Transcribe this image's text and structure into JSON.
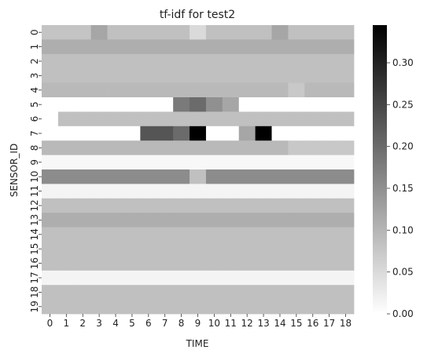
{
  "chart_data": {
    "type": "heatmap",
    "title": "tf-idf for test2",
    "xlabel": "TIME",
    "ylabel": "SENSOR_ID",
    "x_categories": [
      "0",
      "1",
      "2",
      "3",
      "4",
      "5",
      "6",
      "7",
      "8",
      "9",
      "10",
      "11",
      "12",
      "13",
      "14",
      "15",
      "16",
      "17",
      "18"
    ],
    "y_categories": [
      "0",
      "1",
      "2",
      "3",
      "4",
      "5",
      "6",
      "7",
      "8",
      "9",
      "10",
      "11",
      "12",
      "13",
      "14",
      "15",
      "16",
      "17",
      "18",
      "19"
    ],
    "colorbar": {
      "min": 0.0,
      "max": 0.345,
      "ticks": [
        "0.00",
        "0.05",
        "0.10",
        "0.15",
        "0.20",
        "0.25",
        "0.30"
      ],
      "tick_values": [
        0,
        0.05,
        0.1,
        0.15,
        0.2,
        0.25,
        0.3
      ]
    },
    "colormap": {
      "low": "#ffffff",
      "high": "#000000"
    },
    "values": [
      [
        0.08,
        0.08,
        0.08,
        0.12,
        0.085,
        0.085,
        0.085,
        0.085,
        0.085,
        0.05,
        0.085,
        0.085,
        0.085,
        0.085,
        0.12,
        0.085,
        0.085,
        0.085,
        0.085
      ],
      [
        0.11,
        0.11,
        0.11,
        0.11,
        0.11,
        0.11,
        0.11,
        0.11,
        0.11,
        0.11,
        0.11,
        0.11,
        0.11,
        0.11,
        0.11,
        0.11,
        0.11,
        0.11,
        0.11
      ],
      [
        0.085,
        0.085,
        0.085,
        0.085,
        0.085,
        0.085,
        0.085,
        0.085,
        0.085,
        0.085,
        0.085,
        0.085,
        0.085,
        0.085,
        0.085,
        0.085,
        0.085,
        0.085,
        0.085
      ],
      [
        0.085,
        0.085,
        0.085,
        0.085,
        0.085,
        0.085,
        0.085,
        0.085,
        0.085,
        0.085,
        0.085,
        0.085,
        0.085,
        0.085,
        0.085,
        0.085,
        0.085,
        0.085,
        0.085
      ],
      [
        0.095,
        0.095,
        0.095,
        0.095,
        0.095,
        0.095,
        0.095,
        0.095,
        0.095,
        0.095,
        0.095,
        0.095,
        0.095,
        0.095,
        0.095,
        0.075,
        0.095,
        0.095,
        0.095
      ],
      [
        0,
        0,
        0,
        0,
        0,
        0,
        0,
        0,
        0.18,
        0.2,
        0.15,
        0.12,
        0,
        0,
        0,
        0,
        0,
        0,
        0
      ],
      [
        0,
        0.085,
        0.085,
        0.085,
        0.085,
        0.085,
        0.085,
        0.085,
        0.085,
        0.085,
        0.085,
        0.085,
        0.085,
        0.085,
        0.085,
        0.085,
        0.085,
        0.085,
        0.085
      ],
      [
        0,
        0,
        0,
        0,
        0,
        0,
        0.23,
        0.23,
        0.2,
        0.345,
        0,
        0,
        0.12,
        0.345,
        0,
        0,
        0,
        0,
        0
      ],
      [
        0.095,
        0.095,
        0.095,
        0.095,
        0.095,
        0.095,
        0.095,
        0.095,
        0.095,
        0.095,
        0.095,
        0.095,
        0.095,
        0.095,
        0.095,
        0.075,
        0.075,
        0.075,
        0.075
      ],
      [
        0.01,
        0.01,
        0.01,
        0.01,
        0.01,
        0.01,
        0.01,
        0.01,
        0.01,
        0.01,
        0.01,
        0.01,
        0.01,
        0.01,
        0.01,
        0.01,
        0.01,
        0.01,
        0.01
      ],
      [
        0.155,
        0.155,
        0.155,
        0.155,
        0.155,
        0.155,
        0.155,
        0.155,
        0.155,
        0.085,
        0.155,
        0.155,
        0.155,
        0.155,
        0.155,
        0.155,
        0.155,
        0.155,
        0.155
      ],
      [
        0.015,
        0.015,
        0.015,
        0.015,
        0.015,
        0.015,
        0.015,
        0.015,
        0.015,
        0.015,
        0.015,
        0.015,
        0.015,
        0.015,
        0.015,
        0.015,
        0.015,
        0.015,
        0.015
      ],
      [
        0.085,
        0.085,
        0.085,
        0.085,
        0.085,
        0.085,
        0.085,
        0.085,
        0.085,
        0.085,
        0.085,
        0.085,
        0.085,
        0.085,
        0.085,
        0.085,
        0.085,
        0.085,
        0.085
      ],
      [
        0.11,
        0.11,
        0.11,
        0.11,
        0.11,
        0.11,
        0.11,
        0.11,
        0.11,
        0.11,
        0.11,
        0.11,
        0.11,
        0.11,
        0.11,
        0.11,
        0.11,
        0.11,
        0.11
      ],
      [
        0.085,
        0.085,
        0.085,
        0.085,
        0.085,
        0.085,
        0.085,
        0.085,
        0.085,
        0.085,
        0.085,
        0.085,
        0.085,
        0.085,
        0.085,
        0.085,
        0.085,
        0.085,
        0.085
      ],
      [
        0.085,
        0.085,
        0.085,
        0.085,
        0.085,
        0.085,
        0.085,
        0.085,
        0.085,
        0.085,
        0.085,
        0.085,
        0.085,
        0.085,
        0.085,
        0.085,
        0.085,
        0.085,
        0.085
      ],
      [
        0.085,
        0.085,
        0.085,
        0.085,
        0.085,
        0.085,
        0.085,
        0.085,
        0.085,
        0.085,
        0.085,
        0.085,
        0.085,
        0.085,
        0.085,
        0.085,
        0.085,
        0.085,
        0.085
      ],
      [
        0.015,
        0.015,
        0.015,
        0.015,
        0.015,
        0.015,
        0.015,
        0.015,
        0.015,
        0.015,
        0.015,
        0.015,
        0.015,
        0.015,
        0.015,
        0.015,
        0.015,
        0.015,
        0.015
      ],
      [
        0.085,
        0.085,
        0.085,
        0.085,
        0.085,
        0.085,
        0.085,
        0.085,
        0.085,
        0.085,
        0.085,
        0.085,
        0.085,
        0.085,
        0.085,
        0.085,
        0.085,
        0.085,
        0.085
      ],
      [
        0.085,
        0.085,
        0.085,
        0.085,
        0.085,
        0.085,
        0.085,
        0.085,
        0.085,
        0.085,
        0.085,
        0.085,
        0.085,
        0.085,
        0.085,
        0.085,
        0.085,
        0.085,
        0.085
      ]
    ]
  }
}
